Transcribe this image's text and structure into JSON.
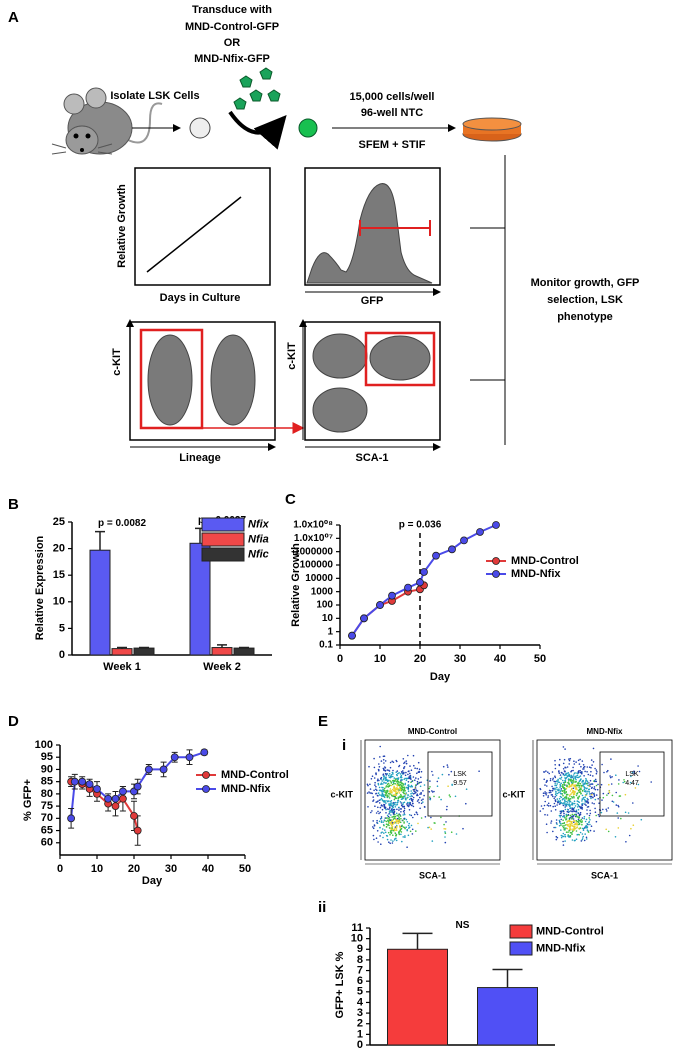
{
  "panel_a": {
    "label": "A",
    "transduce": [
      "Transduce with",
      "MND-Control-GFP",
      "OR",
      "MND-Nfix-GFP"
    ],
    "isolate": "Isolate LSK Cells",
    "culture": [
      "15,000 cells/well",
      "96-well NTC"
    ],
    "medium": "SFEM + STIF",
    "growth_plot": {
      "y_label": "Relative Growth",
      "x_label": "Days in Culture"
    },
    "gfp_plot": {
      "x_label": "GFP"
    },
    "lineage_plot": {
      "y_label": "c-KIT",
      "x_label": "Lineage"
    },
    "sca_plot": {
      "y_label": "c-KIT",
      "x_label": "SCA-1"
    },
    "monitor": [
      "Monitor growth, GFP",
      "selection, LSK",
      "phenotype"
    ]
  },
  "chart_data": [
    {
      "panel_label": "B",
      "type": "bar",
      "y_label": "Relative Expression",
      "categories": [
        "Week 1",
        "Week 2"
      ],
      "series": [
        {
          "name": "Nfix",
          "color": "#5a5af2",
          "values": [
            19.7,
            21.0
          ],
          "errors": [
            3.5,
            2.8
          ]
        },
        {
          "name": "Nfia",
          "color": "#f04848",
          "values": [
            1.2,
            1.4
          ],
          "errors": [
            0.2,
            0.5
          ]
        },
        {
          "name": "Nfic",
          "color": "#333333",
          "values": [
            1.3,
            1.3
          ],
          "errors": [
            0.1,
            0.1
          ]
        }
      ],
      "ylim": [
        0,
        25
      ],
      "yticks": [
        0,
        5,
        10,
        15,
        20,
        25
      ],
      "annotations": [
        "p = 0.0082",
        "p = 0.0037"
      ]
    },
    {
      "panel_label": "C",
      "type": "line",
      "y_label": "Relative Growth",
      "x_label": "Day",
      "log_y": true,
      "series": [
        {
          "name": "MND-Control",
          "color": "#e03a3a",
          "x": [
            3,
            6,
            10,
            13,
            17,
            20,
            21
          ],
          "values": [
            0.5,
            10,
            100,
            200,
            1000,
            1500,
            3000
          ]
        },
        {
          "name": "MND-Nfix",
          "color": "#4a4ae8",
          "x": [
            3,
            6,
            10,
            13,
            17,
            20,
            21,
            24,
            28,
            31,
            35,
            39
          ],
          "values": [
            0.5,
            10,
            100,
            500,
            2000,
            5000,
            30000,
            500000,
            1500000,
            7000000,
            30000000,
            100000000
          ]
        }
      ],
      "xlim": [
        0,
        50
      ],
      "xticks": [
        0,
        10,
        20,
        30,
        40,
        50
      ],
      "ylim": [
        0.1,
        100000000
      ],
      "yticks": [
        0.1,
        1,
        10,
        100,
        1000,
        10000,
        100000,
        1000000,
        {
          "value": 10000000,
          "label": "1.0x10⁰⁷"
        },
        {
          "value": 100000000,
          "label": "1.0x10⁰⁸"
        }
      ],
      "vline_x": 20,
      "annotations": [
        "p = 0.036"
      ]
    },
    {
      "panel_label": "D",
      "type": "line",
      "y_label": "% GFP+",
      "x_label": "Day",
      "series": [
        {
          "name": "MND-Control",
          "color": "#e03a3a",
          "x": [
            3,
            6,
            8,
            10,
            13,
            15,
            17,
            20,
            21
          ],
          "values": [
            85,
            84,
            82,
            80,
            76,
            75,
            78,
            71,
            65
          ],
          "errors": [
            2,
            2,
            3,
            3,
            3,
            4,
            5,
            6,
            6
          ]
        },
        {
          "name": "MND-Nfix",
          "color": "#4a4ae8",
          "x": [
            3,
            4,
            6,
            8,
            10,
            13,
            15,
            17,
            20,
            21,
            24,
            28,
            31,
            35,
            39
          ],
          "values": [
            70,
            85,
            85,
            84,
            82,
            78,
            78,
            81,
            81,
            83,
            90,
            90,
            95,
            95,
            97
          ],
          "errors": [
            4,
            3,
            2,
            2,
            3,
            2,
            3,
            2,
            3,
            3,
            2,
            3,
            2,
            3,
            1
          ]
        }
      ],
      "xlim": [
        0,
        50
      ],
      "xticks": [
        0,
        10,
        20,
        30,
        40,
        50
      ],
      "ylim": [
        55,
        100
      ],
      "yticks": [
        60,
        65,
        70,
        75,
        80,
        85,
        90,
        95,
        100
      ]
    },
    {
      "panel_label": "ii",
      "type": "bar",
      "y_label": "GFP+ LSK %",
      "categories": [
        null
      ],
      "series": [
        {
          "name": "MND-Control",
          "color": "#f53c3c",
          "values": [
            9.0
          ],
          "errors": [
            1.5
          ]
        },
        {
          "name": "MND-Nfix",
          "color": "#5050f5",
          "values": [
            5.4
          ],
          "errors": [
            1.7
          ]
        }
      ],
      "ylim": [
        0,
        11
      ],
      "yticks": [
        0,
        1,
        2,
        3,
        4,
        5,
        6,
        7,
        8,
        9,
        10,
        11
      ],
      "annotations": [
        "NS"
      ]
    }
  ],
  "panel_e_i": {
    "label": "E",
    "sublabel": "i",
    "plots": [
      {
        "title": "MND-Control",
        "y_label": "c-KIT",
        "x_label": "SCA-1",
        "gate_label": "LSK",
        "gate_value": 9.57
      },
      {
        "title": "MND-Nfix",
        "y_label": "c-KIT",
        "x_label": "SCA-1",
        "gate_label": "LSK",
        "gate_value": 4.47
      }
    ]
  }
}
